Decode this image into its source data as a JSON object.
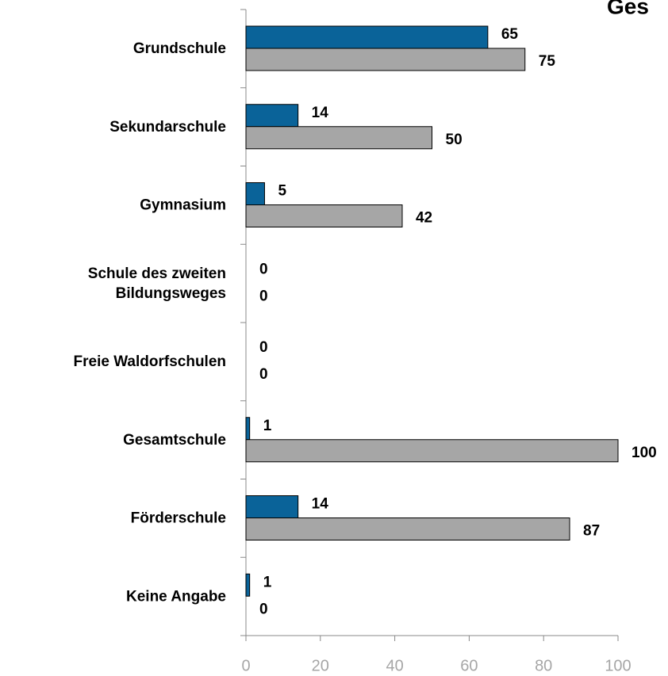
{
  "chart_data": {
    "type": "barh",
    "title": "Ges",
    "categories": [
      "Grundschule",
      "Sekundarschule",
      "Gymnasium",
      "Schule des zweiten\nBildungsweges",
      "Freie Waldorfschulen",
      "Gesamtschule",
      "Förderschule",
      "Keine Angabe"
    ],
    "series": [
      {
        "color": "#0a6399",
        "values": [
          65,
          14,
          5,
          0,
          0,
          1,
          14,
          1
        ]
      },
      {
        "color": "#a6a6a6",
        "values": [
          75,
          50,
          42,
          0,
          0,
          100,
          87,
          0
        ]
      }
    ],
    "xlim": [
      0,
      100
    ],
    "xticks": [
      0,
      20,
      40,
      60,
      80,
      100
    ]
  }
}
